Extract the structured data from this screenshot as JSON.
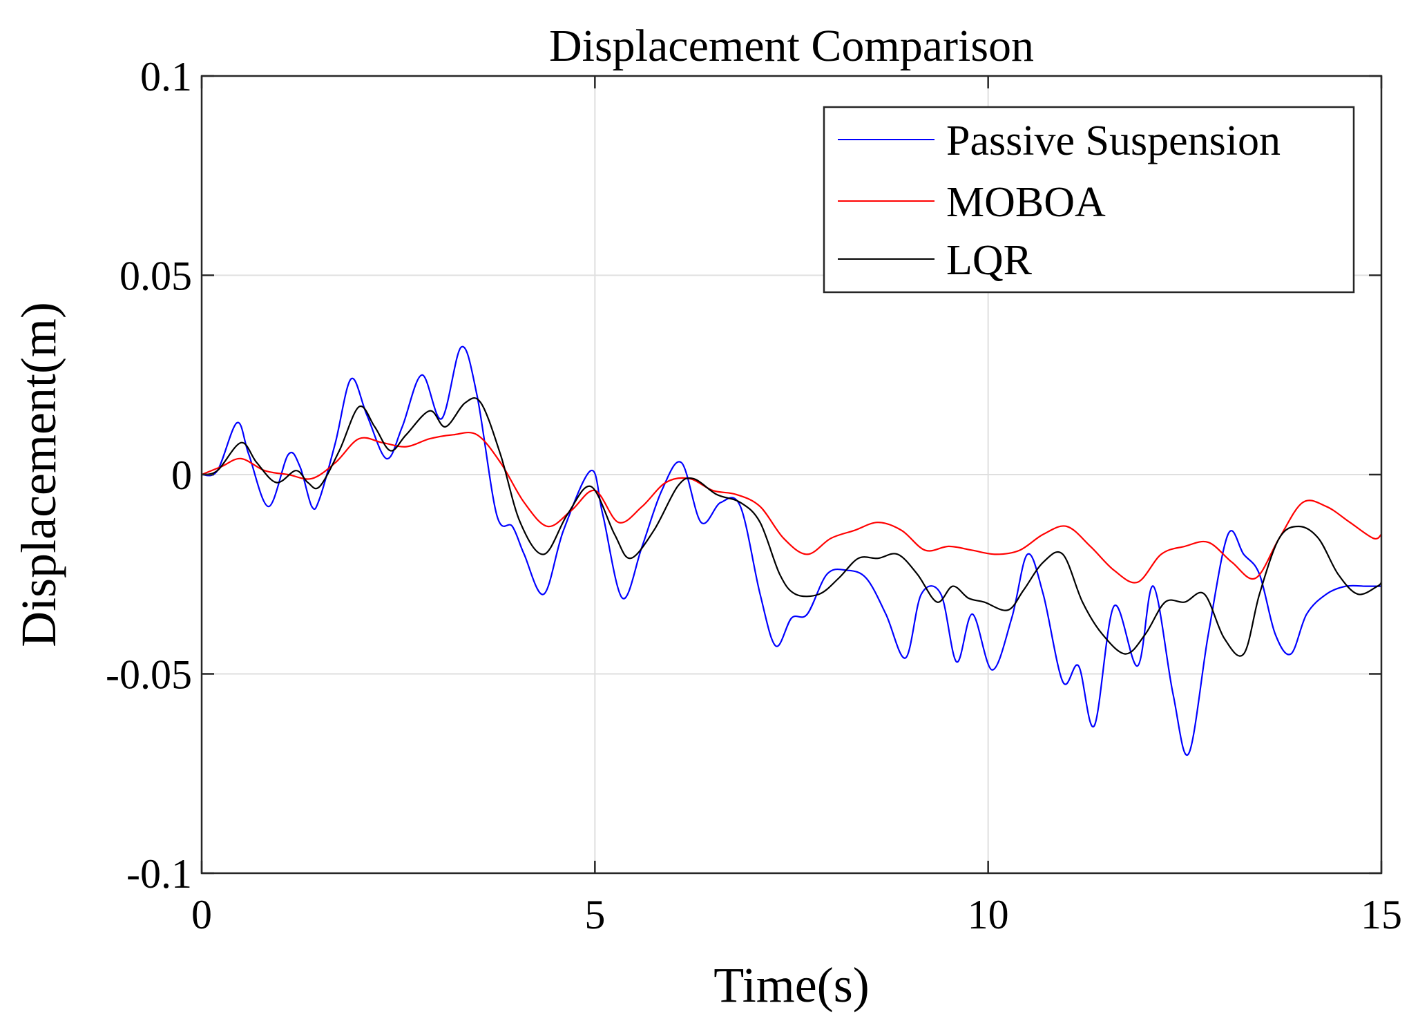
{
  "chart_data": {
    "type": "line",
    "title": "Displacement Comparison",
    "xlabel": "Time(s)",
    "ylabel": "Displacement(m)",
    "xlim": [
      0,
      15
    ],
    "ylim": [
      -0.1,
      0.1
    ],
    "grid": true,
    "legend_position": "top-right",
    "xticks": [
      0,
      5,
      10,
      15
    ],
    "xtick_labels": [
      "0",
      "5",
      "10",
      "15"
    ],
    "yticks": [
      0.1,
      0.05,
      0,
      -0.05,
      -0.1
    ],
    "ytick_labels": [
      "0.1",
      "0.05",
      "0",
      "-0.05",
      "-0.1"
    ],
    "series": [
      {
        "name": "Passive Suspension",
        "color": "#0000ff",
        "x": [
          0,
          0.2,
          0.45,
          0.6,
          0.85,
          1.1,
          1.25,
          1.4,
          1.5,
          1.7,
          1.9,
          2.1,
          2.35,
          2.55,
          2.8,
          3.05,
          3.3,
          3.5,
          3.75,
          3.95,
          4.1,
          4.35,
          4.6,
          4.95,
          5.1,
          5.35,
          5.6,
          5.85,
          6.1,
          6.35,
          6.6,
          6.85,
          7.1,
          7.3,
          7.5,
          7.7,
          7.95,
          8.2,
          8.45,
          8.7,
          8.95,
          9.15,
          9.4,
          9.6,
          9.8,
          10.05,
          10.3,
          10.5,
          10.7,
          10.95,
          11.15,
          11.35,
          11.6,
          11.9,
          12.1,
          12.35,
          12.55,
          12.8,
          13.05,
          13.25,
          13.45,
          13.65,
          13.85,
          14.05,
          14.3,
          14.55,
          14.8,
          15
        ],
        "y": [
          0,
          0.001,
          0.013,
          0.005,
          -0.008,
          0.005,
          0.002,
          -0.008,
          -0.006,
          0.008,
          0.024,
          0.015,
          0.004,
          0.012,
          0.025,
          0.014,
          0.032,
          0.02,
          -0.01,
          -0.013,
          -0.02,
          -0.03,
          -0.014,
          0.001,
          -0.01,
          -0.031,
          -0.018,
          -0.004,
          0.003,
          -0.012,
          -0.007,
          -0.008,
          -0.03,
          -0.043,
          -0.036,
          -0.035,
          -0.025,
          -0.024,
          -0.026,
          -0.035,
          -0.046,
          -0.03,
          -0.03,
          -0.047,
          -0.035,
          -0.049,
          -0.036,
          -0.02,
          -0.03,
          -0.052,
          -0.048,
          -0.063,
          -0.033,
          -0.048,
          -0.028,
          -0.055,
          -0.07,
          -0.04,
          -0.015,
          -0.02,
          -0.025,
          -0.04,
          -0.045,
          -0.035,
          -0.03,
          -0.028,
          -0.028,
          -0.028
        ]
      },
      {
        "name": "MOBOA",
        "color": "#ff0000",
        "x": [
          0,
          0.25,
          0.5,
          0.8,
          1.1,
          1.4,
          1.7,
          2.0,
          2.3,
          2.6,
          2.9,
          3.2,
          3.5,
          3.8,
          4.1,
          4.4,
          4.7,
          5.0,
          5.3,
          5.6,
          5.9,
          6.2,
          6.5,
          6.8,
          7.1,
          7.4,
          7.7,
          8.0,
          8.3,
          8.6,
          8.9,
          9.2,
          9.5,
          9.8,
          10.1,
          10.4,
          10.7,
          11.0,
          11.3,
          11.6,
          11.9,
          12.2,
          12.5,
          12.8,
          13.1,
          13.4,
          13.7,
          14.0,
          14.3,
          14.6,
          14.9,
          15
        ],
        "y": [
          0,
          0.002,
          0.004,
          0.001,
          0,
          -0.001,
          0.003,
          0.009,
          0.008,
          0.007,
          0.009,
          0.01,
          0.01,
          0.003,
          -0.007,
          -0.013,
          -0.009,
          -0.004,
          -0.012,
          -0.008,
          -0.002,
          -0.001,
          -0.004,
          -0.005,
          -0.008,
          -0.016,
          -0.02,
          -0.016,
          -0.014,
          -0.012,
          -0.014,
          -0.019,
          -0.018,
          -0.019,
          -0.02,
          -0.019,
          -0.015,
          -0.013,
          -0.018,
          -0.024,
          -0.027,
          -0.02,
          -0.018,
          -0.017,
          -0.022,
          -0.026,
          -0.016,
          -0.007,
          -0.008,
          -0.012,
          -0.016,
          -0.015
        ]
      },
      {
        "name": "LQR",
        "color": "#000000",
        "x": [
          0,
          0.2,
          0.5,
          0.7,
          0.95,
          1.2,
          1.35,
          1.5,
          1.75,
          2.0,
          2.2,
          2.4,
          2.6,
          2.9,
          3.1,
          3.35,
          3.55,
          3.8,
          4.05,
          4.35,
          4.65,
          4.95,
          5.25,
          5.45,
          5.75,
          6.05,
          6.25,
          6.55,
          6.85,
          7.1,
          7.35,
          7.55,
          7.85,
          8.1,
          8.35,
          8.6,
          8.85,
          9.1,
          9.35,
          9.55,
          9.75,
          9.95,
          10.25,
          10.45,
          10.7,
          10.95,
          11.2,
          11.45,
          11.75,
          12.0,
          12.25,
          12.5,
          12.75,
          13.0,
          13.25,
          13.45,
          13.7,
          13.95,
          14.2,
          14.45,
          14.7,
          14.95,
          15
        ],
        "y": [
          0,
          0.001,
          0.008,
          0.003,
          -0.002,
          0.001,
          -0.002,
          -0.003,
          0.006,
          0.017,
          0.012,
          0.006,
          0.01,
          0.016,
          0.012,
          0.018,
          0.018,
          0.005,
          -0.012,
          -0.02,
          -0.01,
          -0.003,
          -0.015,
          -0.021,
          -0.014,
          -0.003,
          -0.001,
          -0.005,
          -0.007,
          -0.012,
          -0.025,
          -0.03,
          -0.03,
          -0.026,
          -0.021,
          -0.021,
          -0.02,
          -0.025,
          -0.032,
          -0.028,
          -0.031,
          -0.032,
          -0.034,
          -0.029,
          -0.022,
          -0.02,
          -0.032,
          -0.04,
          -0.045,
          -0.04,
          -0.032,
          -0.032,
          -0.03,
          -0.041,
          -0.045,
          -0.03,
          -0.016,
          -0.013,
          -0.016,
          -0.025,
          -0.03,
          -0.028,
          -0.027
        ]
      }
    ]
  }
}
